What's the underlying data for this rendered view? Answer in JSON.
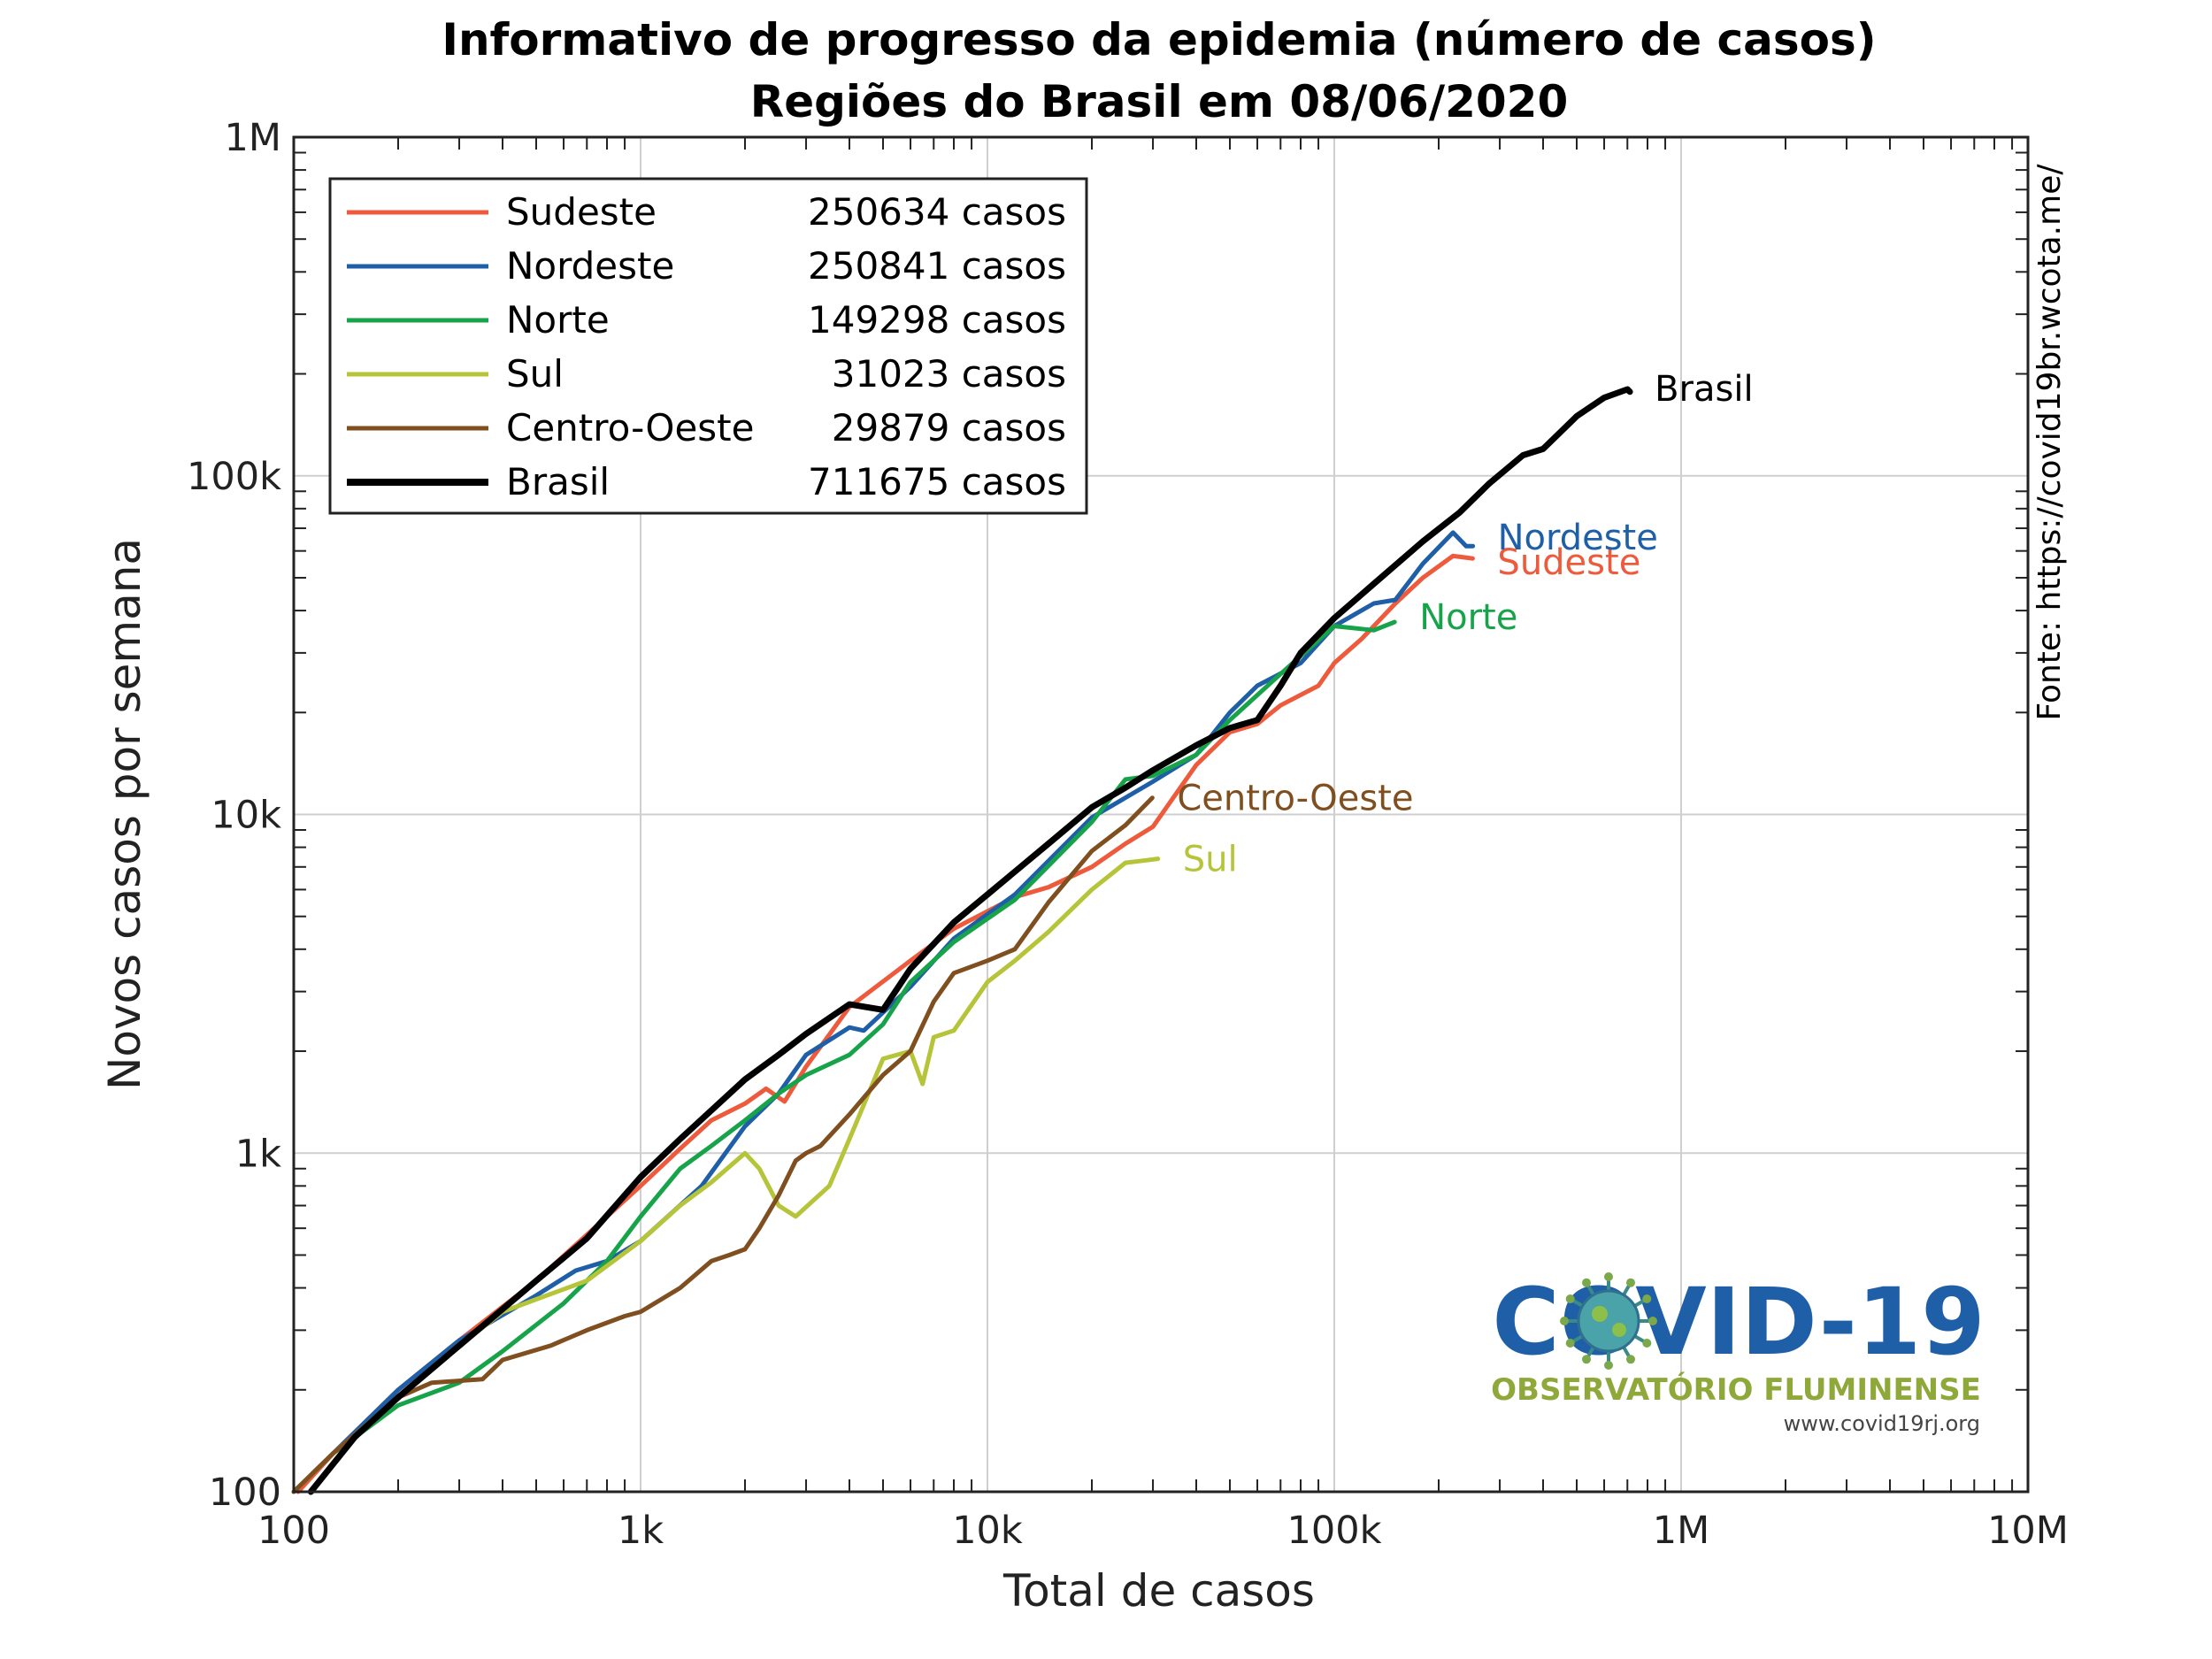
{
  "chart_data": {
    "type": "line",
    "title": "Informativo de progresso da epidemia (número de casos)",
    "subtitle": "Regiões do Brasil em 08/06/2020",
    "xlabel": "Total de casos",
    "ylabel": "Novos casos por semana",
    "x_scale": "log",
    "y_scale": "log",
    "xlim": [
      100,
      10000000
    ],
    "ylim": [
      100,
      1000000
    ],
    "x_ticks": [
      "100",
      "1k",
      "10k",
      "100k",
      "1M",
      "10M"
    ],
    "y_ticks": [
      "100",
      "1k",
      "10k",
      "100k",
      "1M"
    ],
    "grid": true,
    "legend_position": "top-left",
    "source_note": "Fonte: https://covid19br.wcota.me/",
    "logo": {
      "title": "COVID-19",
      "subtitle": "OBSERVATÓRIO FLUMINENSE",
      "url": "www.covid19rj.org"
    },
    "series": [
      {
        "name": "Sudeste",
        "cases_label": "250634 casos",
        "color": "#ee5a3c",
        "points": [
          [
            103,
            100
          ],
          [
            130,
            130
          ],
          [
            200,
            200
          ],
          [
            300,
            280
          ],
          [
            500,
            420
          ],
          [
            800,
            650
          ],
          [
            1000,
            800
          ],
          [
            1300,
            1030
          ],
          [
            1600,
            1250
          ],
          [
            2000,
            1400
          ],
          [
            2300,
            1550
          ],
          [
            2600,
            1420
          ],
          [
            3000,
            1800
          ],
          [
            4000,
            2700
          ],
          [
            6000,
            3700
          ],
          [
            8000,
            4600
          ],
          [
            12000,
            5700
          ],
          [
            15000,
            6100
          ],
          [
            20000,
            7000
          ],
          [
            25000,
            8200
          ],
          [
            30000,
            9200
          ],
          [
            40000,
            14000
          ],
          [
            50000,
            17500
          ],
          [
            60000,
            18500
          ],
          [
            70000,
            21000
          ],
          [
            90000,
            24000
          ],
          [
            100000,
            28000
          ],
          [
            120000,
            33000
          ],
          [
            150000,
            42000
          ],
          [
            180000,
            50000
          ],
          [
            220000,
            58000
          ],
          [
            250634,
            57000
          ]
        ]
      },
      {
        "name": "Nordeste",
        "cases_label": "250841 casos",
        "color": "#1f5fa8",
        "points": [
          [
            100,
            100
          ],
          [
            130,
            130
          ],
          [
            200,
            200
          ],
          [
            300,
            280
          ],
          [
            500,
            380
          ],
          [
            650,
            450
          ],
          [
            800,
            480
          ],
          [
            1000,
            550
          ],
          [
            1500,
            800
          ],
          [
            2000,
            1200
          ],
          [
            2500,
            1500
          ],
          [
            3000,
            1950
          ],
          [
            4000,
            2350
          ],
          [
            4400,
            2300
          ],
          [
            6000,
            3100
          ],
          [
            8000,
            4300
          ],
          [
            12000,
            5800
          ],
          [
            20000,
            9800
          ],
          [
            30000,
            12500
          ],
          [
            40000,
            15000
          ],
          [
            50000,
            20000
          ],
          [
            60000,
            24000
          ],
          [
            80000,
            28000
          ],
          [
            100000,
            36000
          ],
          [
            130000,
            42000
          ],
          [
            150000,
            43000
          ],
          [
            180000,
            55000
          ],
          [
            220000,
            68000
          ],
          [
            240000,
            62000
          ],
          [
            250841,
            62000
          ]
        ]
      },
      {
        "name": "Norte",
        "cases_label": "149298 casos",
        "color": "#17a34a",
        "points": [
          [
            100,
            100
          ],
          [
            130,
            130
          ],
          [
            200,
            180
          ],
          [
            300,
            210
          ],
          [
            400,
            260
          ],
          [
            600,
            360
          ],
          [
            800,
            480
          ],
          [
            1000,
            650
          ],
          [
            1300,
            900
          ],
          [
            1600,
            1050
          ],
          [
            2000,
            1250
          ],
          [
            2500,
            1500
          ],
          [
            3000,
            1700
          ],
          [
            4000,
            1950
          ],
          [
            5000,
            2400
          ],
          [
            6000,
            3200
          ],
          [
            8000,
            4200
          ],
          [
            12000,
            5600
          ],
          [
            20000,
            9500
          ],
          [
            25000,
            12700
          ],
          [
            30000,
            13000
          ],
          [
            40000,
            15000
          ],
          [
            50000,
            19000
          ],
          [
            70000,
            26000
          ],
          [
            100000,
            36000
          ],
          [
            130000,
            35000
          ],
          [
            149298,
            37000
          ]
        ]
      },
      {
        "name": "Sul",
        "cases_label": "31023 casos",
        "color": "#b6c43a",
        "points": [
          [
            100,
            100
          ],
          [
            130,
            130
          ],
          [
            200,
            190
          ],
          [
            300,
            270
          ],
          [
            400,
            340
          ],
          [
            500,
            370
          ],
          [
            700,
            420
          ],
          [
            1000,
            550
          ],
          [
            1300,
            700
          ],
          [
            1600,
            820
          ],
          [
            2000,
            1000
          ],
          [
            2200,
            900
          ],
          [
            2500,
            700
          ],
          [
            2800,
            650
          ],
          [
            3500,
            800
          ],
          [
            4000,
            1100
          ],
          [
            5000,
            1900
          ],
          [
            6000,
            2000
          ],
          [
            6500,
            1600
          ],
          [
            7000,
            2200
          ],
          [
            8000,
            2300
          ],
          [
            10000,
            3200
          ],
          [
            12000,
            3700
          ],
          [
            15000,
            4500
          ],
          [
            20000,
            6000
          ],
          [
            25000,
            7200
          ],
          [
            28000,
            7300
          ],
          [
            31023,
            7400
          ]
        ]
      },
      {
        "name": "Centro-Oeste",
        "cases_label": "29879 casos",
        "color": "#7f4f1f",
        "points": [
          [
            100,
            100
          ],
          [
            130,
            130
          ],
          [
            200,
            190
          ],
          [
            250,
            210
          ],
          [
            350,
            215
          ],
          [
            400,
            245
          ],
          [
            550,
            270
          ],
          [
            700,
            300
          ],
          [
            900,
            330
          ],
          [
            1000,
            340
          ],
          [
            1300,
            400
          ],
          [
            1600,
            480
          ],
          [
            1800,
            500
          ],
          [
            2000,
            520
          ],
          [
            2200,
            600
          ],
          [
            2500,
            750
          ],
          [
            2800,
            950
          ],
          [
            3000,
            1000
          ],
          [
            3300,
            1050
          ],
          [
            4000,
            1300
          ],
          [
            5000,
            1700
          ],
          [
            6000,
            2000
          ],
          [
            7000,
            2800
          ],
          [
            8000,
            3400
          ],
          [
            10000,
            3700
          ],
          [
            12000,
            4000
          ],
          [
            15000,
            5500
          ],
          [
            20000,
            7800
          ],
          [
            25000,
            9300
          ],
          [
            29879,
            11200
          ]
        ]
      },
      {
        "name": "Brasil",
        "cases_label": "711675 casos",
        "color": "#000000",
        "points": [
          [
            112,
            100
          ],
          [
            150,
            145
          ],
          [
            200,
            190
          ],
          [
            300,
            270
          ],
          [
            500,
            420
          ],
          [
            700,
            560
          ],
          [
            1000,
            850
          ],
          [
            1300,
            1100
          ],
          [
            2000,
            1650
          ],
          [
            2500,
            1950
          ],
          [
            3000,
            2250
          ],
          [
            4000,
            2750
          ],
          [
            5000,
            2650
          ],
          [
            6000,
            3500
          ],
          [
            8000,
            4800
          ],
          [
            10000,
            5800
          ],
          [
            15000,
            8200
          ],
          [
            20000,
            10500
          ],
          [
            25000,
            12000
          ],
          [
            30000,
            13500
          ],
          [
            40000,
            16000
          ],
          [
            50000,
            18000
          ],
          [
            60000,
            19000
          ],
          [
            70000,
            24000
          ],
          [
            80000,
            30000
          ],
          [
            100000,
            38000
          ],
          [
            130000,
            48000
          ],
          [
            180000,
            64000
          ],
          [
            230000,
            78000
          ],
          [
            280000,
            95000
          ],
          [
            350000,
            115000
          ],
          [
            400000,
            120000
          ],
          [
            450000,
            135000
          ],
          [
            500000,
            150000
          ],
          [
            600000,
            170000
          ],
          [
            700000,
            180000
          ],
          [
            711675,
            177000
          ]
        ]
      }
    ]
  }
}
